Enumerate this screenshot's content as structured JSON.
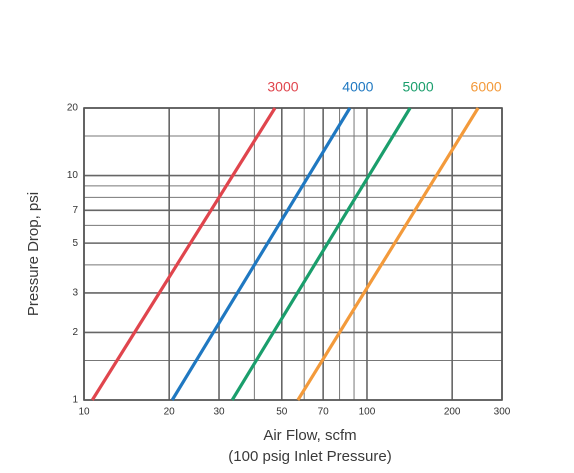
{
  "chart_data": {
    "type": "line",
    "log_x": true,
    "log_y": true,
    "grid": true,
    "xlabel": [
      "Air Flow, scfm",
      "(100 psig Inlet Pressure)"
    ],
    "ylabel": "Pressure Drop, psi",
    "xlim": [
      10,
      300
    ],
    "ylim": [
      1,
      20
    ],
    "xticks": [
      10,
      20,
      30,
      50,
      70,
      100,
      200,
      300
    ],
    "xminor": [
      40,
      60,
      80,
      90
    ],
    "yticks": [
      1,
      2,
      3,
      5,
      7,
      10,
      20
    ],
    "yminor": [
      1.5,
      4,
      6,
      8,
      9,
      15
    ],
    "series": [
      {
        "name": "3000",
        "color": "#e0454d",
        "x": [
          10.7,
          47.3
        ],
        "values": [
          1,
          20
        ]
      },
      {
        "name": "4000",
        "color": "#1f78c1",
        "x": [
          20.5,
          87
        ],
        "values": [
          1,
          20
        ]
      },
      {
        "name": "5000",
        "color": "#1a9e6c",
        "x": [
          33.4,
          142
        ],
        "values": [
          1,
          20
        ]
      },
      {
        "name": "6000",
        "color": "#f39a3b",
        "x": [
          57,
          247
        ],
        "values": [
          1,
          20
        ]
      }
    ]
  }
}
